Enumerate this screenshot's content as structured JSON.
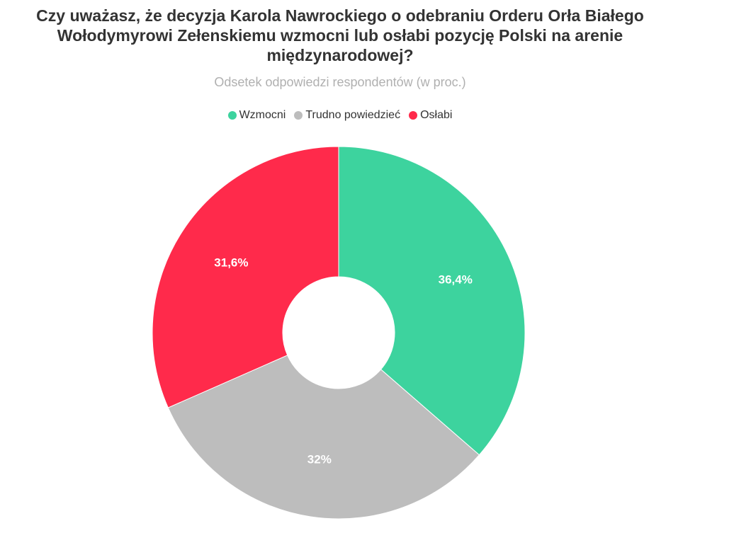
{
  "chart_data": {
    "type": "pie",
    "title": "Czy uważasz, że decyzja Karola Nawrockiego o odebraniu Orderu Orła Białego Wołodymyrowi Zełenskiemu wzmocni lub osłabi pozycję Polski na arenie międzynarodowej?",
    "subtitle": "Odsetek odpowiedzi respondentów (w proc.)",
    "legend_position": "top-center",
    "donut": true,
    "slices": [
      {
        "name": "Wzmocni",
        "value": 36.4,
        "label": "36,4%",
        "color": "#3dd39e"
      },
      {
        "name": "Trudno powiedzieć",
        "value": 32,
        "label": "32%",
        "color": "#bdbdbd"
      },
      {
        "name": "Osłabi",
        "value": 31.6,
        "label": "31,6%",
        "color": "#ff2a4b"
      }
    ]
  }
}
